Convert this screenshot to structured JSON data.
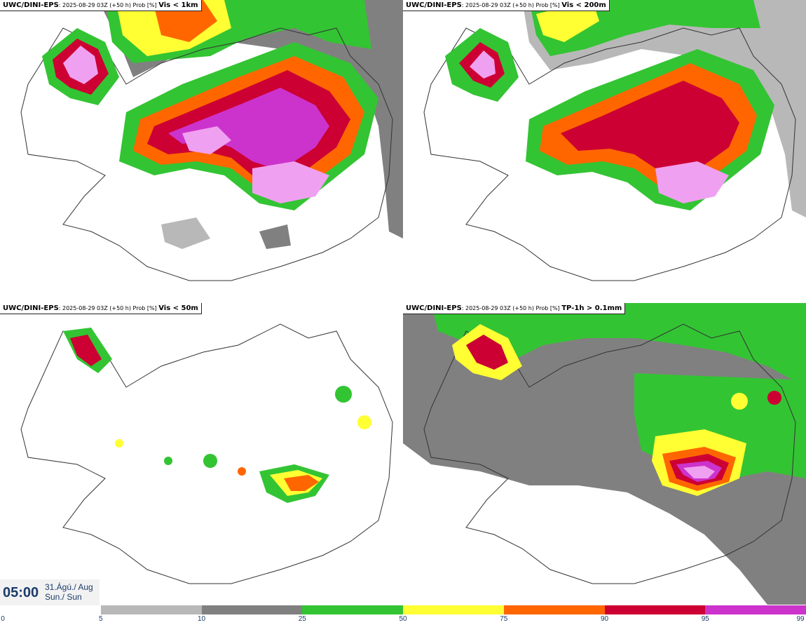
{
  "panels": [
    {
      "source": "UWC/DINI-EPS",
      "meta": ": 2025-08-29 03Z (+50 h) Prob [%] ",
      "variable": "Vis < 1km"
    },
    {
      "source": "UWC/DINI-EPS",
      "meta": ": 2025-08-29 03Z (+50 h) Prob [%] ",
      "variable": "Vis < 200m"
    },
    {
      "source": "UWC/DINI-EPS",
      "meta": ": 2025-08-29 03Z (+50 h) Prob [%] ",
      "variable": "Vis < 50m"
    },
    {
      "source": "UWC/DINI-EPS",
      "meta": ": 2025-08-29 03Z (+50 h) Prob [%] ",
      "variable": "TP-1h > 0.1mm"
    }
  ],
  "valid_time": {
    "time": "05:00",
    "date_line1": "31.Ágú./ Aug",
    "date_line2": "Sun./ Sun"
  },
  "colorbar": {
    "ticks": [
      "0",
      "5",
      "10",
      "25",
      "50",
      "75",
      "90",
      "95",
      "99"
    ],
    "colors": [
      "#ffffff",
      "#b8b8b8",
      "#808080",
      "#33c433",
      "#ffff33",
      "#ff6600",
      "#cc0033",
      "#cc33cc",
      "#f0a0f0"
    ]
  },
  "map_colors": {
    "lightgrey": "#b8b8b8",
    "grey": "#808080",
    "green": "#33c433",
    "yellow": "#ffff33",
    "orange": "#ff6600",
    "red": "#cc0033",
    "magenta": "#cc33cc",
    "pink": "#f0a0f0"
  }
}
